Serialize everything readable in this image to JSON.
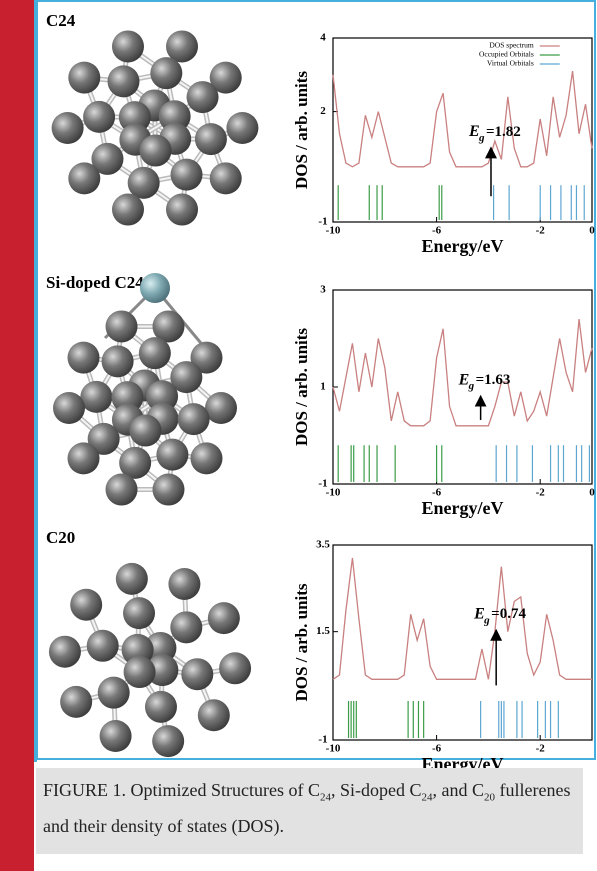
{
  "panels": [
    {
      "label": "C24"
    },
    {
      "label": "Si-doped C24"
    },
    {
      "label": "C20"
    }
  ],
  "chart_data": [
    {
      "type": "line",
      "ylabel": "DOS / arb. units",
      "xlabel": "Energy/eV",
      "xlim": [
        -10,
        0
      ],
      "ylim": [
        -1,
        4
      ],
      "xticks": [
        -10,
        -6,
        -2,
        0
      ],
      "yticks": [
        -1,
        2,
        4
      ],
      "annotation": {
        "symbol": "E",
        "sub": "g",
        "text": "=1.82"
      },
      "legend": "top-right",
      "series": [
        {
          "name": "DOS spectrum",
          "color": "#c98080",
          "x": [
            -10,
            -9.75,
            -9.5,
            -9.25,
            -9,
            -8.75,
            -8.5,
            -8.25,
            -8,
            -7.75,
            -7.5,
            -7.25,
            -7,
            -6.75,
            -6.5,
            -6.25,
            -6,
            -5.75,
            -5.5,
            -5.25,
            -5,
            -4.75,
            -4.5,
            -4.25,
            -4,
            -3.75,
            -3.5,
            -3.25,
            -3,
            -2.75,
            -2.5,
            -2.25,
            -2,
            -1.75,
            -1.5,
            -1.25,
            -1,
            -0.75,
            -0.5,
            -0.25,
            0
          ],
          "values": [
            3.0,
            1.4,
            0.6,
            0.5,
            0.6,
            1.9,
            1.3,
            2.0,
            1.3,
            0.6,
            0.5,
            0.5,
            0.5,
            0.5,
            0.5,
            0.6,
            2.0,
            2.5,
            0.9,
            0.5,
            0.5,
            0.5,
            0.5,
            0.5,
            0.6,
            1.2,
            0.7,
            2.4,
            1.0,
            0.5,
            0.5,
            0.6,
            1.8,
            0.8,
            2.4,
            1.3,
            1.9,
            3.1,
            1.4,
            2.2,
            1.0
          ]
        },
        {
          "name": "Occupied Orbitals",
          "color": "#3c9c46",
          "x": [
            -9.8,
            -8.6,
            -8.3,
            -8.1,
            -5.9,
            -5.8
          ]
        },
        {
          "name": "Virtual Orbitals",
          "color": "#5ea6d2",
          "x": [
            -3.8,
            -3.2,
            -2.0,
            -1.6,
            -1.2,
            -0.8,
            -0.6,
            -0.3
          ]
        }
      ]
    },
    {
      "type": "line",
      "ylabel": "DOS / arb. units",
      "xlabel": "Energy/eV",
      "xlim": [
        -10,
        0
      ],
      "ylim": [
        -1,
        3
      ],
      "xticks": [
        -10,
        -6,
        -2,
        0
      ],
      "yticks": [
        -1,
        1,
        3
      ],
      "annotation": {
        "symbol": "E",
        "sub": "g",
        "text": "=1.63"
      },
      "series": [
        {
          "color": "#c98080",
          "x": [
            -10,
            -9.75,
            -9.5,
            -9.25,
            -9,
            -8.75,
            -8.5,
            -8.25,
            -8,
            -7.75,
            -7.5,
            -7.25,
            -7,
            -6.75,
            -6.5,
            -6.25,
            -6,
            -5.75,
            -5.5,
            -5.25,
            -5,
            -4.75,
            -4.5,
            -4.25,
            -4,
            -3.75,
            -3.5,
            -3.25,
            -3,
            -2.75,
            -2.5,
            -2.25,
            -2,
            -1.75,
            -1.5,
            -1.25,
            -1,
            -0.75,
            -0.5,
            -0.25,
            0
          ],
          "values": [
            1.0,
            0.5,
            1.2,
            1.9,
            0.9,
            1.7,
            1.0,
            2.0,
            1.4,
            0.3,
            0.9,
            0.3,
            0.2,
            0.2,
            0.2,
            0.3,
            1.6,
            2.2,
            0.6,
            0.2,
            0.2,
            0.2,
            0.2,
            0.2,
            0.2,
            0.6,
            1.1,
            1.1,
            0.4,
            0.9,
            0.3,
            0.5,
            0.9,
            0.4,
            1.2,
            2.0,
            1.3,
            0.9,
            2.4,
            1.3,
            1.8
          ]
        },
        {
          "color": "#3c9c46",
          "x": [
            -9.8,
            -9.3,
            -9.2,
            -8.8,
            -8.6,
            -8.3,
            -7.6,
            -6.0,
            -5.8
          ]
        },
        {
          "color": "#5ea6d2",
          "x": [
            -3.7,
            -3.3,
            -2.9,
            -2.3,
            -1.6,
            -1.3,
            -1.1,
            -0.6,
            -0.4,
            -0.1
          ]
        }
      ]
    },
    {
      "type": "line",
      "ylabel": "DOS / arb. units",
      "xlabel": "Energy/eV",
      "xlim": [
        -10,
        0
      ],
      "ylim": [
        -1,
        3.5
      ],
      "xticks": [
        -10,
        -6,
        -2
      ],
      "yticks": [
        -1,
        1.5,
        3.5
      ],
      "annotation": {
        "symbol": "E",
        "sub": "g",
        "text": "=0.74"
      },
      "series": [
        {
          "color": "#c98080",
          "x": [
            -10,
            -9.75,
            -9.5,
            -9.25,
            -9,
            -8.75,
            -8.5,
            -8.25,
            -8,
            -7.75,
            -7.5,
            -7.25,
            -7,
            -6.75,
            -6.5,
            -6.25,
            -6,
            -5.75,
            -5.5,
            -5.25,
            -5,
            -4.75,
            -4.5,
            -4.25,
            -4,
            -3.75,
            -3.5,
            -3.25,
            -3,
            -2.75,
            -2.5,
            -2.25,
            -2,
            -1.75,
            -1.5,
            -1.25,
            -1,
            -0.75,
            -0.5,
            -0.25,
            0
          ],
          "values": [
            0.4,
            0.5,
            2.0,
            3.2,
            1.8,
            0.5,
            0.4,
            0.4,
            0.4,
            0.4,
            0.4,
            0.5,
            1.9,
            1.3,
            1.8,
            0.7,
            0.4,
            0.4,
            0.4,
            0.4,
            0.4,
            0.4,
            0.4,
            1.1,
            0.4,
            1.5,
            3.0,
            1.5,
            2.2,
            2.3,
            1.0,
            0.5,
            0.8,
            1.9,
            1.3,
            0.5,
            0.4,
            0.4,
            0.4,
            0.4,
            0.4
          ]
        },
        {
          "color": "#3c9c46",
          "x": [
            -9.4,
            -9.3,
            -9.2,
            -9.1,
            -7.1,
            -6.9,
            -6.7,
            -6.5
          ]
        },
        {
          "color": "#5ea6d2",
          "x": [
            -4.3,
            -3.6,
            -3.5,
            -3.4,
            -2.9,
            -2.7,
            -2.1,
            -1.8,
            -1.6,
            -1.3
          ]
        }
      ]
    }
  ],
  "caption": [
    {
      "text": "FIGURE 1. Optimized Structures of C"
    },
    {
      "text": "24",
      "sub": true
    },
    {
      "text": ", Si-doped C"
    },
    {
      "text": "24",
      "sub": true
    },
    {
      "text": ", and C"
    },
    {
      "text": "20",
      "sub": true
    },
    {
      "text": " fullerenes and their density of states (DOS)."
    }
  ]
}
